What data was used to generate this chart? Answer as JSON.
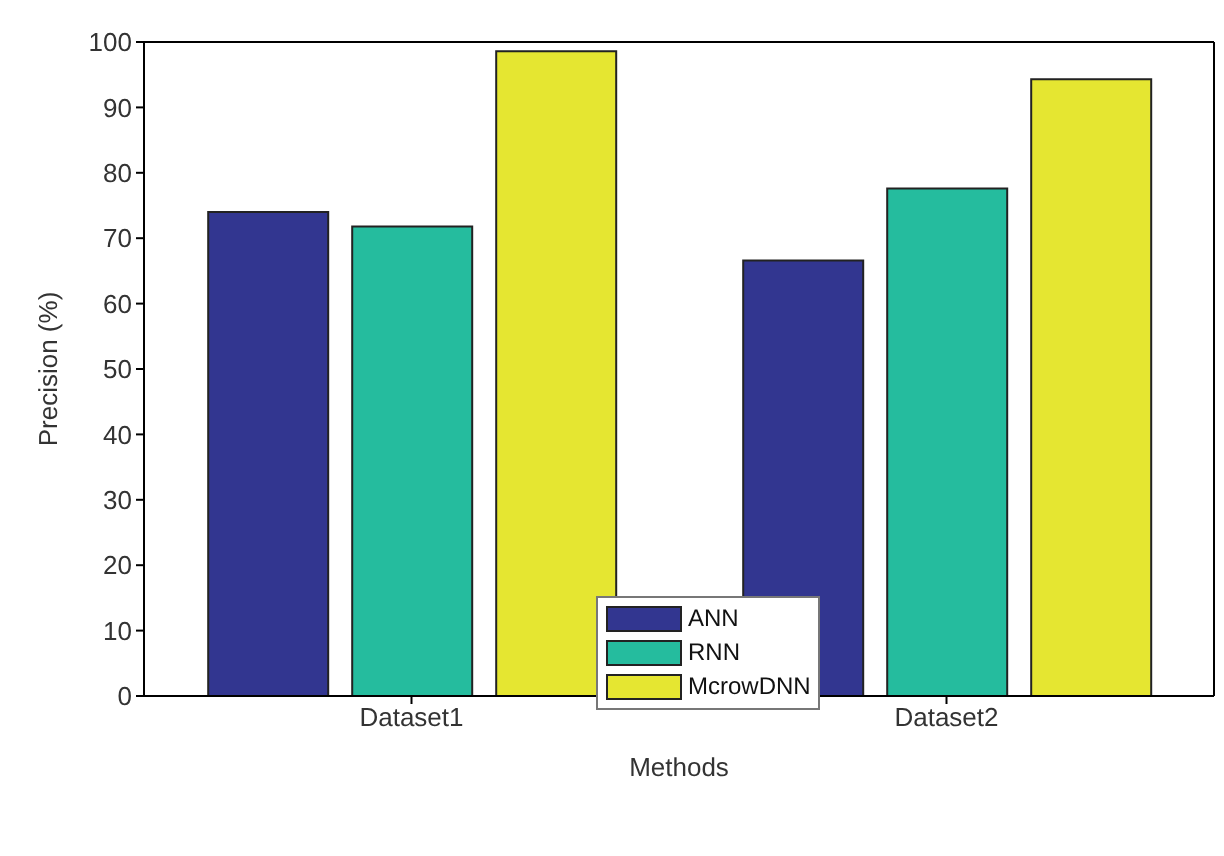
{
  "chart_data": {
    "type": "bar",
    "xlabel": "Methods",
    "ylabel": "Precision (%)",
    "categories": [
      "Dataset1",
      "Dataset2"
    ],
    "series": [
      {
        "name": "ANN",
        "color": "#323690",
        "values": [
          74,
          66.6
        ]
      },
      {
        "name": "RNN",
        "color": "#25bc9e",
        "values": [
          71.8,
          77.6
        ]
      },
      {
        "name": "McrowDNN",
        "color": "#e5e631",
        "values": [
          98.6,
          94.3
        ]
      }
    ],
    "ylim": [
      0,
      100
    ],
    "yticks": [
      0,
      10,
      20,
      30,
      40,
      50,
      60,
      70,
      80,
      90,
      100
    ],
    "grid": false,
    "legend": "bottom"
  }
}
